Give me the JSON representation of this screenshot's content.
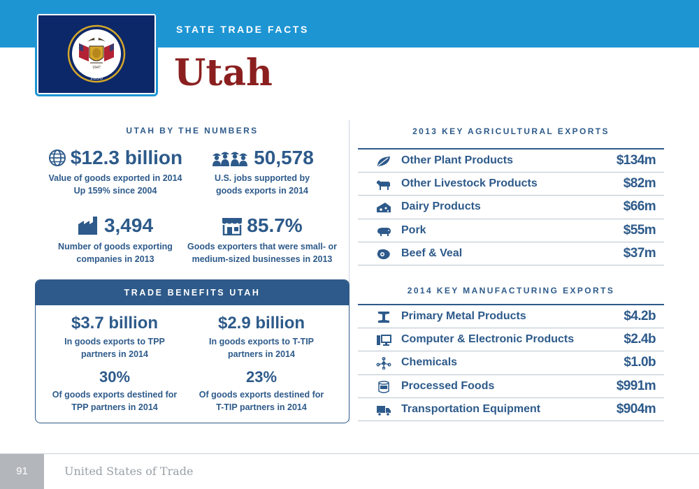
{
  "header": {
    "kicker": "STATE TRADE FACTS",
    "state": "Utah",
    "flag_year": "1896",
    "flag_motto": "1847",
    "colors": {
      "bar": "#1e95d3",
      "title": "#8b1f1f",
      "primary": "#2d5a8a",
      "flag_field": "#0c2869",
      "flag_gold": "#d5a72a"
    }
  },
  "numbers": {
    "title": "UTAH BY THE NUMBERS",
    "stats": [
      {
        "icon": "globe-icon",
        "value": "$12.3 billion",
        "desc1": "Value of goods exported in 2014",
        "desc2": "Up 159% since 2004"
      },
      {
        "icon": "workers-icon",
        "value": "50,578",
        "desc1": "U.S. jobs supported by",
        "desc2": "goods exports in 2014"
      },
      {
        "icon": "factory-icon",
        "value": "3,494",
        "desc1": "Number of goods exporting",
        "desc2": "companies in 2013"
      },
      {
        "icon": "storefront-icon",
        "value": "85.7%",
        "desc1": "Goods exporters that were small- or",
        "desc2": "medium-sized businesses in 2013"
      }
    ]
  },
  "trade_benefits": {
    "title": "TRADE BENEFITS UTAH",
    "items": [
      {
        "value": "$3.7 billion",
        "desc1": "In goods exports to TPP",
        "desc2": "partners in 2014"
      },
      {
        "value": "$2.9 billion",
        "desc1": "In goods exports to T-TIP",
        "desc2": "partners in 2014"
      },
      {
        "value": "30%",
        "desc1": "Of goods exports destined for",
        "desc2": "TPP partners in 2014"
      },
      {
        "value": "23%",
        "desc1": "Of goods exports destined for",
        "desc2": "T-TIP partners in 2014"
      }
    ]
  },
  "agricultural": {
    "title": "2013 KEY AGRICULTURAL EXPORTS",
    "rows": [
      {
        "icon": "leaf-icon",
        "label": "Other Plant Products",
        "value": "$134m"
      },
      {
        "icon": "cow-icon",
        "label": "Other Livestock Products",
        "value": "$82m"
      },
      {
        "icon": "cheese-icon",
        "label": "Dairy Products",
        "value": "$66m"
      },
      {
        "icon": "pig-icon",
        "label": "Pork",
        "value": "$55m"
      },
      {
        "icon": "steak-icon",
        "label": "Beef & Veal",
        "value": "$37m"
      }
    ]
  },
  "manufacturing": {
    "title": "2014 KEY MANUFACTURING EXPORTS",
    "rows": [
      {
        "icon": "i-beam-icon",
        "label": "Primary Metal Products",
        "value": "$4.2b"
      },
      {
        "icon": "computer-icon",
        "label": "Computer & Electronic Products",
        "value": "$2.4b"
      },
      {
        "icon": "molecule-icon",
        "label": "Chemicals",
        "value": "$1.0b"
      },
      {
        "icon": "can-icon",
        "label": "Processed Foods",
        "value": "$991m"
      },
      {
        "icon": "truck-icon",
        "label": "Transportation Equipment",
        "value": "$904m"
      }
    ]
  },
  "footer": {
    "page": "91",
    "publication": "United States of Trade"
  }
}
